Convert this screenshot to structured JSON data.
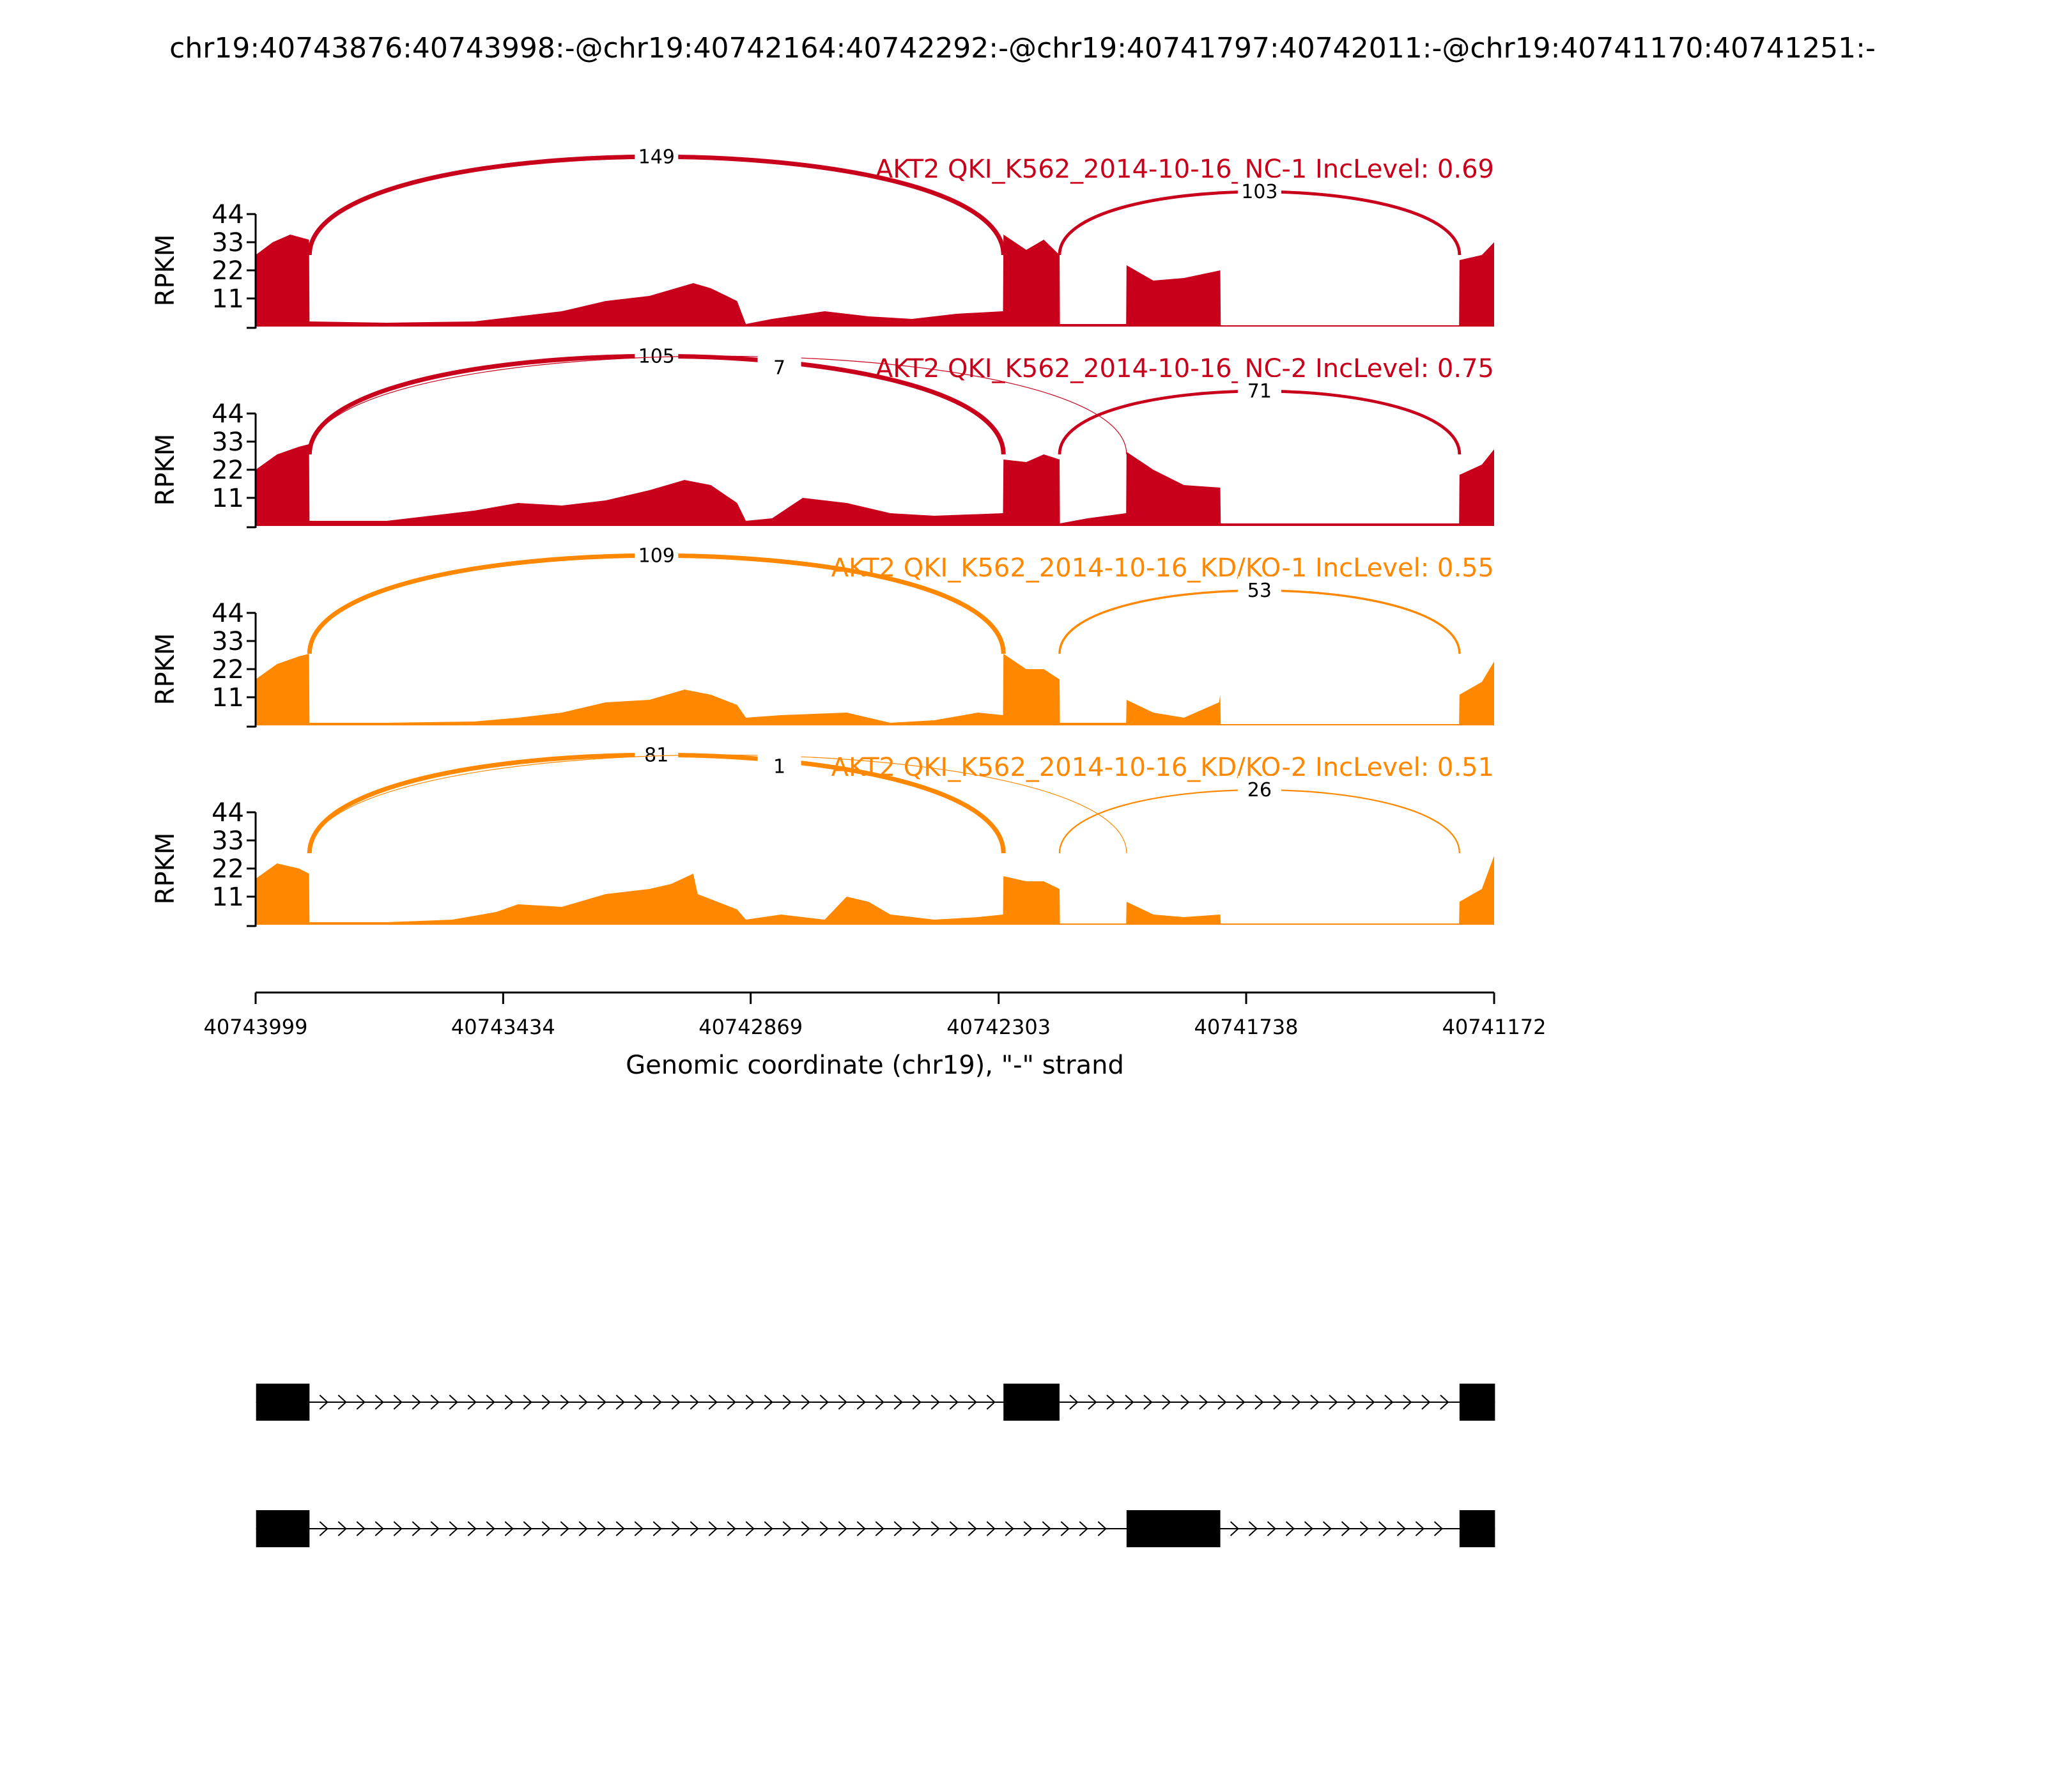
{
  "figure": {
    "title": "chr19:40743876:40743998:-@chr19:40742164:40742292:-@chr19:40741797:40742011:-@chr19:40741170:40741251:-"
  },
  "chart_data": {
    "type": "sashimi",
    "gene": "AKT2",
    "strand": "-",
    "xlabel": "Genomic coordinate (chr19), \"-\" strand",
    "ylabel": "RPKM",
    "xlim": [
      40743999,
      40741172
    ],
    "x_ticks": [
      40743999,
      40743434,
      40742869,
      40742303,
      40741738,
      40741172
    ],
    "y_ticks": [
      11,
      22,
      33,
      44
    ],
    "ylim": [
      0,
      44
    ],
    "colors": {
      "NC": "#c8001b",
      "KD": "#ff8800",
      "exon": "#000000"
    },
    "exons": [
      {
        "start": 40743998,
        "end": 40743876
      },
      {
        "start": 40742292,
        "end": 40742164
      },
      {
        "start": 40742011,
        "end": 40741797
      },
      {
        "start": 40741251,
        "end": 40741170
      }
    ],
    "samples": [
      {
        "name": "AKT2 QKI_K562_2014-10-16_NC-1 IncLevel: 0.69",
        "group": "NC",
        "inc_level": 0.69,
        "profile": [
          [
            40743999,
            28
          ],
          [
            40743960,
            33
          ],
          [
            40743920,
            36
          ],
          [
            40743877,
            34
          ],
          [
            40743876,
            2
          ],
          [
            40743700,
            1.5
          ],
          [
            40743500,
            2
          ],
          [
            40743400,
            4
          ],
          [
            40743300,
            6
          ],
          [
            40743200,
            10
          ],
          [
            40743100,
            12
          ],
          [
            40743000,
            17
          ],
          [
            40742960,
            15
          ],
          [
            40742900,
            10
          ],
          [
            40742880,
            1
          ],
          [
            40742820,
            3
          ],
          [
            40742700,
            6
          ],
          [
            40742600,
            4
          ],
          [
            40742500,
            3
          ],
          [
            40742400,
            5
          ],
          [
            40742293,
            6
          ],
          [
            40742292,
            36
          ],
          [
            40742240,
            30
          ],
          [
            40742200,
            34
          ],
          [
            40742164,
            28
          ],
          [
            40742163,
            1
          ],
          [
            40742012,
            1
          ],
          [
            40742011,
            24
          ],
          [
            40741950,
            18
          ],
          [
            40741880,
            19
          ],
          [
            40741797,
            22
          ],
          [
            40741796,
            0.5
          ],
          [
            40741252,
            0.5
          ],
          [
            40741251,
            26
          ],
          [
            40741200,
            28
          ],
          [
            40741172,
            33
          ]
        ],
        "junctions": [
          {
            "from": 40743876,
            "to": 40742292,
            "count": 149
          },
          {
            "from": 40742164,
            "to": 40741251,
            "count": 103
          }
        ]
      },
      {
        "name": "AKT2 QKI_K562_2014-10-16_NC-2 IncLevel: 0.75",
        "group": "NC",
        "inc_level": 0.75,
        "profile": [
          [
            40743999,
            22
          ],
          [
            40743950,
            28
          ],
          [
            40743900,
            31
          ],
          [
            40743877,
            32
          ],
          [
            40743876,
            2
          ],
          [
            40743700,
            2
          ],
          [
            40743500,
            6
          ],
          [
            40743400,
            9
          ],
          [
            40743300,
            8
          ],
          [
            40743200,
            10
          ],
          [
            40743100,
            14
          ],
          [
            40743020,
            18
          ],
          [
            40742960,
            16
          ],
          [
            40742900,
            9
          ],
          [
            40742880,
            2
          ],
          [
            40742820,
            3
          ],
          [
            40742750,
            11
          ],
          [
            40742650,
            9
          ],
          [
            40742550,
            5
          ],
          [
            40742450,
            4
          ],
          [
            40742293,
            5
          ],
          [
            40742292,
            26
          ],
          [
            40742240,
            25
          ],
          [
            40742200,
            28
          ],
          [
            40742164,
            26
          ],
          [
            40742163,
            1
          ],
          [
            40742100,
            3
          ],
          [
            40742012,
            5
          ],
          [
            40742011,
            29
          ],
          [
            40741950,
            22
          ],
          [
            40741880,
            16
          ],
          [
            40741797,
            15
          ],
          [
            40741796,
            1
          ],
          [
            40741252,
            1
          ],
          [
            40741251,
            20
          ],
          [
            40741200,
            24
          ],
          [
            40741172,
            30
          ]
        ],
        "junctions": [
          {
            "from": 40743876,
            "to": 40742292,
            "count": 105
          },
          {
            "from": 40743876,
            "to": 40742011,
            "count": 7
          },
          {
            "from": 40742164,
            "to": 40741251,
            "count": 71
          }
        ]
      },
      {
        "name": "AKT2 QKI_K562_2014-10-16_KD/KO-1 IncLevel: 0.55",
        "group": "KD",
        "inc_level": 0.55,
        "profile": [
          [
            40743999,
            18
          ],
          [
            40743950,
            24
          ],
          [
            40743900,
            27
          ],
          [
            40743877,
            28
          ],
          [
            40743876,
            1
          ],
          [
            40743700,
            1
          ],
          [
            40743500,
            1.5
          ],
          [
            40743400,
            3
          ],
          [
            40743300,
            5
          ],
          [
            40743200,
            9
          ],
          [
            40743100,
            10
          ],
          [
            40743020,
            14
          ],
          [
            40742960,
            12
          ],
          [
            40742900,
            8
          ],
          [
            40742880,
            3
          ],
          [
            40742800,
            4
          ],
          [
            40742650,
            5
          ],
          [
            40742550,
            1
          ],
          [
            40742450,
            2
          ],
          [
            40742350,
            5
          ],
          [
            40742293,
            4
          ],
          [
            40742292,
            28
          ],
          [
            40742240,
            22
          ],
          [
            40742200,
            22
          ],
          [
            40742164,
            18
          ],
          [
            40742163,
            1
          ],
          [
            40742012,
            1
          ],
          [
            40742011,
            10
          ],
          [
            40741950,
            5
          ],
          [
            40741880,
            3
          ],
          [
            40741800,
            9
          ],
          [
            40741797,
            12
          ],
          [
            40741796,
            0.5
          ],
          [
            40741252,
            0.5
          ],
          [
            40741251,
            12
          ],
          [
            40741200,
            17
          ],
          [
            40741172,
            25
          ]
        ],
        "junctions": [
          {
            "from": 40743876,
            "to": 40742292,
            "count": 109
          },
          {
            "from": 40742164,
            "to": 40741251,
            "count": 53
          }
        ]
      },
      {
        "name": "AKT2 QKI_K562_2014-10-16_KD/KO-2 IncLevel: 0.51",
        "group": "KD",
        "inc_level": 0.51,
        "profile": [
          [
            40743999,
            18
          ],
          [
            40743950,
            24
          ],
          [
            40743900,
            22
          ],
          [
            40743877,
            20
          ],
          [
            40743876,
            1
          ],
          [
            40743700,
            1
          ],
          [
            40743550,
            2
          ],
          [
            40743450,
            5
          ],
          [
            40743400,
            8
          ],
          [
            40743300,
            7
          ],
          [
            40743200,
            12
          ],
          [
            40743100,
            14
          ],
          [
            40743050,
            16
          ],
          [
            40743000,
            20
          ],
          [
            40742990,
            12
          ],
          [
            40742960,
            10
          ],
          [
            40742900,
            6
          ],
          [
            40742880,
            2
          ],
          [
            40742800,
            4
          ],
          [
            40742700,
            2
          ],
          [
            40742650,
            11
          ],
          [
            40742600,
            9
          ],
          [
            40742550,
            4
          ],
          [
            40742450,
            2
          ],
          [
            40742350,
            3
          ],
          [
            40742293,
            4
          ],
          [
            40742292,
            19
          ],
          [
            40742240,
            17
          ],
          [
            40742200,
            17
          ],
          [
            40742164,
            14
          ],
          [
            40742163,
            0.5
          ],
          [
            40742012,
            0.5
          ],
          [
            40742011,
            9
          ],
          [
            40741950,
            4
          ],
          [
            40741880,
            3
          ],
          [
            40741797,
            4
          ],
          [
            40741796,
            0.5
          ],
          [
            40741252,
            0.5
          ],
          [
            40741251,
            9
          ],
          [
            40741200,
            14
          ],
          [
            40741172,
            27
          ]
        ],
        "junctions": [
          {
            "from": 40743876,
            "to": 40742292,
            "count": 81
          },
          {
            "from": 40743876,
            "to": 40742011,
            "count": 1
          },
          {
            "from": 40742164,
            "to": 40741251,
            "count": 26
          }
        ]
      }
    ],
    "isoforms": [
      {
        "exon_indices": [
          0,
          1,
          3
        ]
      },
      {
        "exon_indices": [
          0,
          2,
          3
        ]
      }
    ]
  }
}
